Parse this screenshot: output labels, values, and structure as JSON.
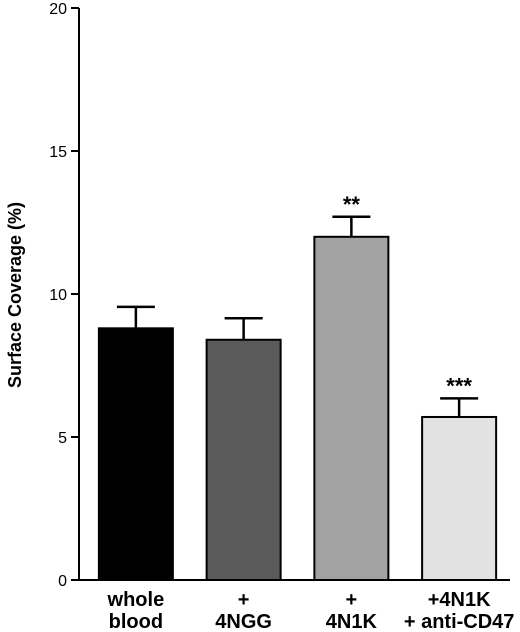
{
  "chart_data": {
    "type": "bar",
    "title": "",
    "xlabel": "",
    "ylabel": "Surface Coverage (%)",
    "ylim": [
      0,
      20
    ],
    "yticks": [
      0,
      5,
      10,
      15,
      20
    ],
    "grid": false,
    "categories": [
      [
        "whole",
        "blood"
      ],
      [
        "+",
        "4NGG"
      ],
      [
        "+",
        "4N1K"
      ],
      [
        "+4N1K",
        "+ anti-CD47"
      ]
    ],
    "values": [
      8.8,
      8.4,
      12.0,
      5.7
    ],
    "errors": [
      0.75,
      0.75,
      0.7,
      0.65
    ],
    "significance": [
      "",
      "",
      "**",
      "***"
    ],
    "colors": [
      "#000000",
      "#5a5a5a",
      "#a2a2a2",
      "#e2e2e2"
    ]
  }
}
